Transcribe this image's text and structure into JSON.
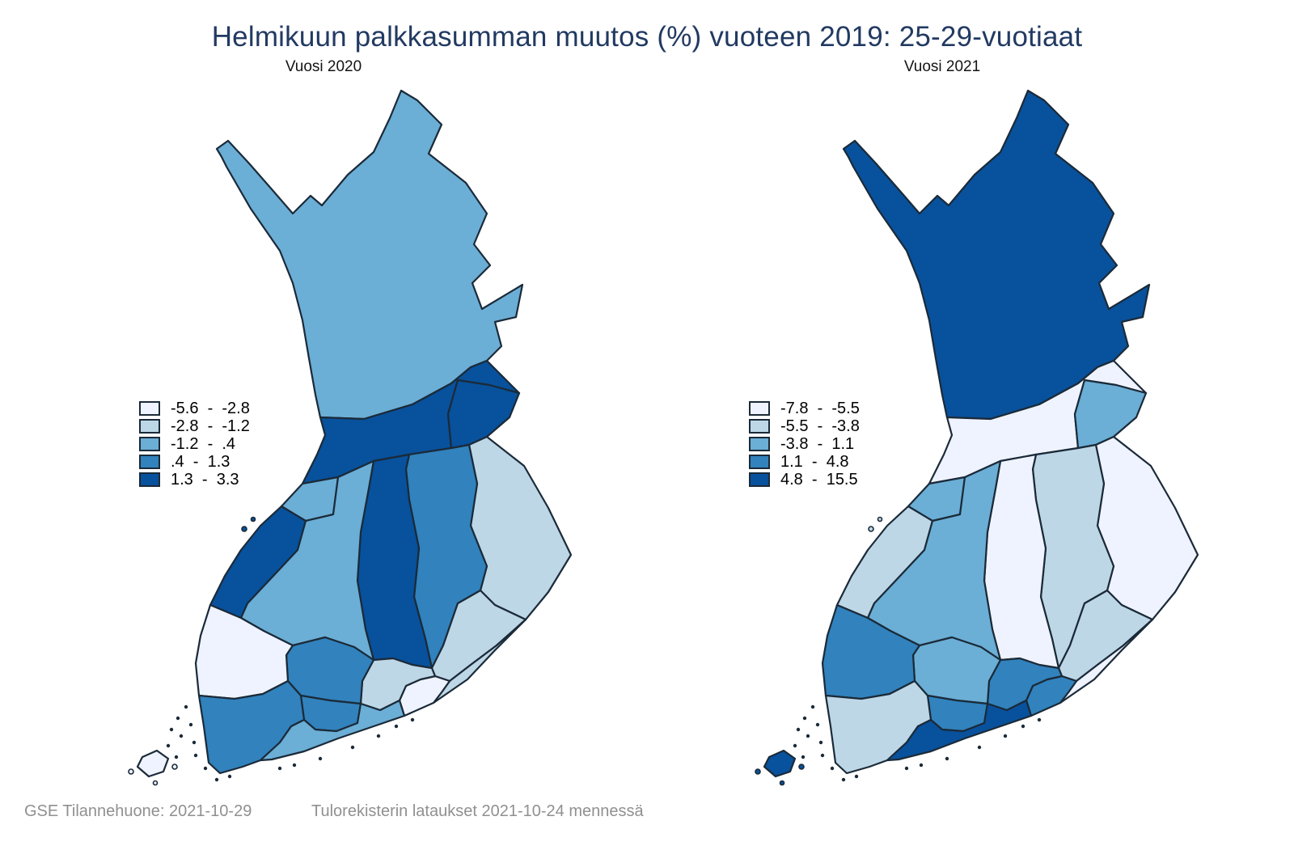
{
  "title": "Helmikuun palkkasumman muutos (%) vuoteen 2019: 25-29-vuotiaat",
  "footer": {
    "left": "GSE Tilannehuone: 2021-10-29",
    "right": "Tulorekisterin lataukset 2021-10-24 mennessä"
  },
  "colors": {
    "title": "#223a62",
    "footer": "#909090",
    "border": "#1b2a38",
    "background": "#ffffff"
  },
  "chart_data": {
    "type": "choropleth",
    "subject": "Change (%) of February wage sum vs 2019, ages 25-29, Finnish regions",
    "class_count": 5,
    "palette": [
      "#eff3ff",
      "#bdd7e7",
      "#6baed6",
      "#3182bd",
      "#08519c"
    ],
    "legend_position": "middle-left of each map",
    "maps": [
      {
        "subtitle": "Vuosi 2020",
        "legend_bins": [
          {
            "from": "-5.6",
            "to": "-2.8"
          },
          {
            "from": "-2.8",
            "to": "-1.2"
          },
          {
            "from": "-1.2",
            "to": ".4"
          },
          {
            "from": ".4",
            "to": "1.3"
          },
          {
            "from": "1.3",
            "to": "3.3"
          }
        ],
        "region_classes": {
          "lappi": 3,
          "pohjois_pohjanmaa": 5,
          "kainuu": 5,
          "keski_pohjanmaa": 3,
          "pohjanmaa": 5,
          "etela_pohjanmaa": 3,
          "keski_suomi": 5,
          "pohjois_savo": 4,
          "pohjois_karjala": 2,
          "etela_savo": 2,
          "etela_karjala": 2,
          "kymenlaakso": 1,
          "paijat_hame": 2,
          "kanta_hame": 4,
          "pirkanmaa": 4,
          "satakunta": 1,
          "varsinais_suomi": 4,
          "uusimaa": 3,
          "ahvenanmaa": 1
        }
      },
      {
        "subtitle": "Vuosi 2021",
        "legend_bins": [
          {
            "from": "-7.8",
            "to": "-5.5"
          },
          {
            "from": "-5.5",
            "to": "-3.8"
          },
          {
            "from": "-3.8",
            "to": "1.1"
          },
          {
            "from": "1.1",
            "to": "4.8"
          },
          {
            "from": "4.8",
            "to": "15.5"
          }
        ],
        "region_classes": {
          "lappi": 5,
          "pohjois_pohjanmaa": 1,
          "kainuu": 3,
          "keski_pohjanmaa": 3,
          "pohjanmaa": 2,
          "etela_pohjanmaa": 3,
          "keski_suomi": 1,
          "pohjois_savo": 2,
          "pohjois_karjala": 1,
          "etela_savo": 2,
          "etela_karjala": 1,
          "kymenlaakso": 4,
          "paijat_hame": 4,
          "kanta_hame": 4,
          "pirkanmaa": 3,
          "satakunta": 4,
          "varsinais_suomi": 2,
          "uusimaa": 5,
          "ahvenanmaa": 5
        }
      }
    ]
  }
}
